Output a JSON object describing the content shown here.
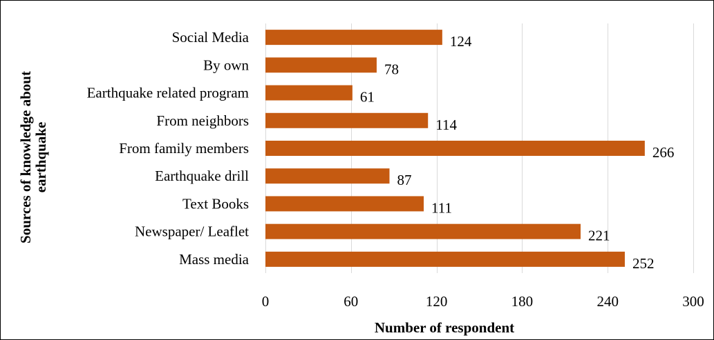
{
  "chart_data": {
    "type": "bar",
    "orientation": "horizontal",
    "categories": [
      "Social Media",
      "By own",
      "Earthquake related program",
      "From neighbors",
      "From family members",
      "Earthquake drill",
      "Text Books",
      "Newspaper/ Leaflet",
      "Mass media"
    ],
    "values": [
      124,
      78,
      61,
      114,
      266,
      87,
      111,
      221,
      252
    ],
    "xlabel": "Number of respondent",
    "ylabel_lines": [
      "Sources of knowledge about",
      "earthquake"
    ],
    "xlim": [
      0,
      300
    ],
    "xticks": [
      0,
      60,
      120,
      180,
      240,
      300
    ],
    "grid": "vertical",
    "bar_color": "#c55a11",
    "data_labels": true,
    "legend": "none"
  }
}
